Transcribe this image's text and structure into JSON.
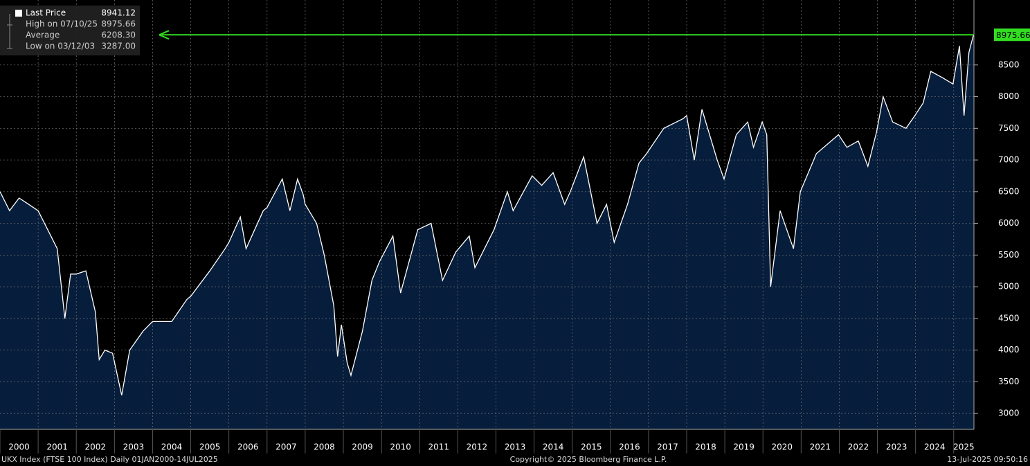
{
  "chart_data": {
    "type": "area",
    "x": [
      2000.0,
      2000.25,
      2000.5,
      2000.75,
      2001.0,
      2001.25,
      2001.5,
      2001.7,
      2001.85,
      2002.0,
      2002.25,
      2002.5,
      2002.6,
      2002.75,
      2002.95,
      2003.19,
      2003.4,
      2003.75,
      2004.0,
      2004.5,
      2004.9,
      2005.0,
      2005.5,
      2005.9,
      2006.0,
      2006.3,
      2006.45,
      2006.9,
      2007.0,
      2007.4,
      2007.6,
      2007.8,
      2007.95,
      2008.0,
      2008.3,
      2008.5,
      2008.75,
      2008.85,
      2008.95,
      2009.1,
      2009.2,
      2009.5,
      2009.75,
      2009.95,
      2010.3,
      2010.5,
      2010.95,
      2011.3,
      2011.6,
      2011.95,
      2012.3,
      2012.45,
      2012.95,
      2013.3,
      2013.45,
      2013.95,
      2014.2,
      2014.5,
      2014.8,
      2014.95,
      2015.3,
      2015.65,
      2015.9,
      2016.1,
      2016.45,
      2016.75,
      2016.95,
      2017.4,
      2017.9,
      2018.0,
      2018.2,
      2018.4,
      2018.8,
      2018.98,
      2019.3,
      2019.6,
      2019.75,
      2019.98,
      2020.1,
      2020.2,
      2020.45,
      2020.8,
      2020.98,
      2021.4,
      2021.98,
      2022.2,
      2022.5,
      2022.75,
      2022.98,
      2023.15,
      2023.4,
      2023.75,
      2023.98,
      2024.2,
      2024.4,
      2024.7,
      2024.98,
      2025.15,
      2025.27,
      2025.4,
      2025.52,
      2025.53
    ],
    "series": [
      {
        "name": "Last Price",
        "color": "#ffffff",
        "fill": "#061d3b",
        "values": [
          6500,
          6200,
          6400,
          6300,
          6200,
          5900,
          5600,
          4500,
          5200,
          5200,
          5250,
          4600,
          3850,
          4000,
          3950,
          3287,
          4000,
          4300,
          4450,
          4450,
          4800,
          4850,
          5250,
          5600,
          5700,
          6100,
          5600,
          6200,
          6250,
          6700,
          6200,
          6700,
          6450,
          6300,
          6000,
          5500,
          4700,
          3900,
          4400,
          3800,
          3600,
          4300,
          5100,
          5400,
          5800,
          4900,
          5900,
          6000,
          5100,
          5550,
          5800,
          5300,
          5900,
          6500,
          6200,
          6750,
          6600,
          6800,
          6300,
          6500,
          7050,
          6000,
          6300,
          5700,
          6300,
          6950,
          7100,
          7500,
          7650,
          7700,
          7000,
          7800,
          7000,
          6700,
          7400,
          7600,
          7200,
          7600,
          7400,
          5000,
          6200,
          5600,
          6500,
          7100,
          7400,
          7200,
          7300,
          6900,
          7450,
          8000,
          7600,
          7500,
          7700,
          7900,
          8400,
          8300,
          8200,
          8800,
          7700,
          8700,
          8975.66,
          8941.12
        ]
      }
    ],
    "xlim": [
      2000,
      2025.53
    ],
    "xticks": [
      2000,
      2001,
      2002,
      2003,
      2004,
      2005,
      2006,
      2007,
      2008,
      2009,
      2010,
      2011,
      2012,
      2013,
      2014,
      2015,
      2016,
      2017,
      2018,
      2019,
      2020,
      2021,
      2022,
      2023,
      2024,
      2025
    ],
    "ylim": [
      2750,
      9525
    ],
    "yticks": [
      3000,
      3500,
      4000,
      4500,
      5000,
      5500,
      6000,
      6500,
      7000,
      7500,
      8000,
      8500
    ],
    "grid": true,
    "stats": [
      {
        "label": "Last Price",
        "value": 8941.12
      },
      {
        "label": "High on 07/10/25",
        "value": 8975.66
      },
      {
        "label": "Average",
        "value": 6208.3,
        "value_label": "6208.30"
      },
      {
        "label": "Low on 03/12/03",
        "value": 3287,
        "value_label": "3287.00"
      }
    ],
    "highlight_color": "#33dd22",
    "footer": {
      "left": "UKX Index (FTSE 100 Index)  Daily 01JAN2000-14JUL2025",
      "center": "Copyright© 2025 Bloomberg Finance L.P.",
      "right": "13-Jul-2025 09:50:16"
    }
  }
}
